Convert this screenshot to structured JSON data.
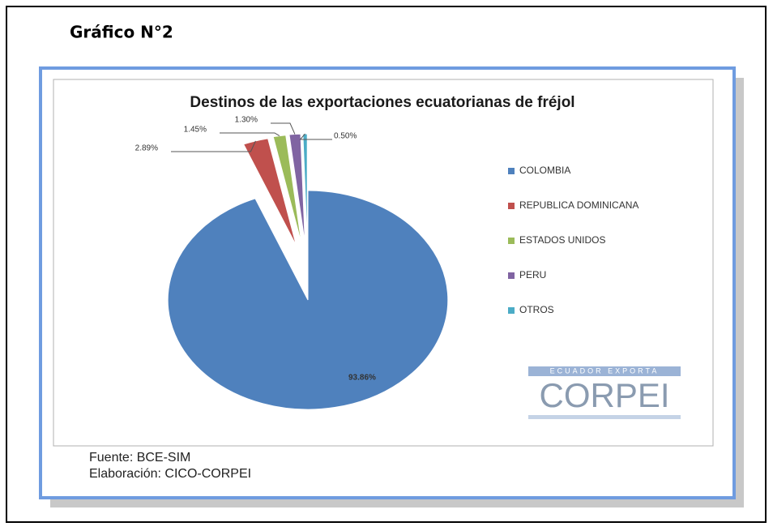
{
  "heading": "Gráfico N°2",
  "chart_data": {
    "type": "pie",
    "title": "Destinos de las exportaciones ecuatorianas de fréjol",
    "categories": [
      "COLOMBIA",
      "REPUBLICA DOMINICANA",
      "ESTADOS UNIDOS",
      "PERU",
      "OTROS"
    ],
    "values": [
      93.86,
      2.89,
      1.45,
      1.3,
      0.5
    ],
    "value_labels": [
      "93.86%",
      "2.89%",
      "1.45%",
      "1.30%",
      "0.50%"
    ],
    "colors": [
      "#4f81bd",
      "#c0504d",
      "#9bbb59",
      "#8064a2",
      "#4bacc6"
    ],
    "legend": "right"
  },
  "source": "Fuente: BCE-SIM",
  "credit": "Elaboración: CICO-CORPEI",
  "logo": {
    "tagline": "ECUADOR EXPORTA",
    "name": "CORPEI"
  }
}
